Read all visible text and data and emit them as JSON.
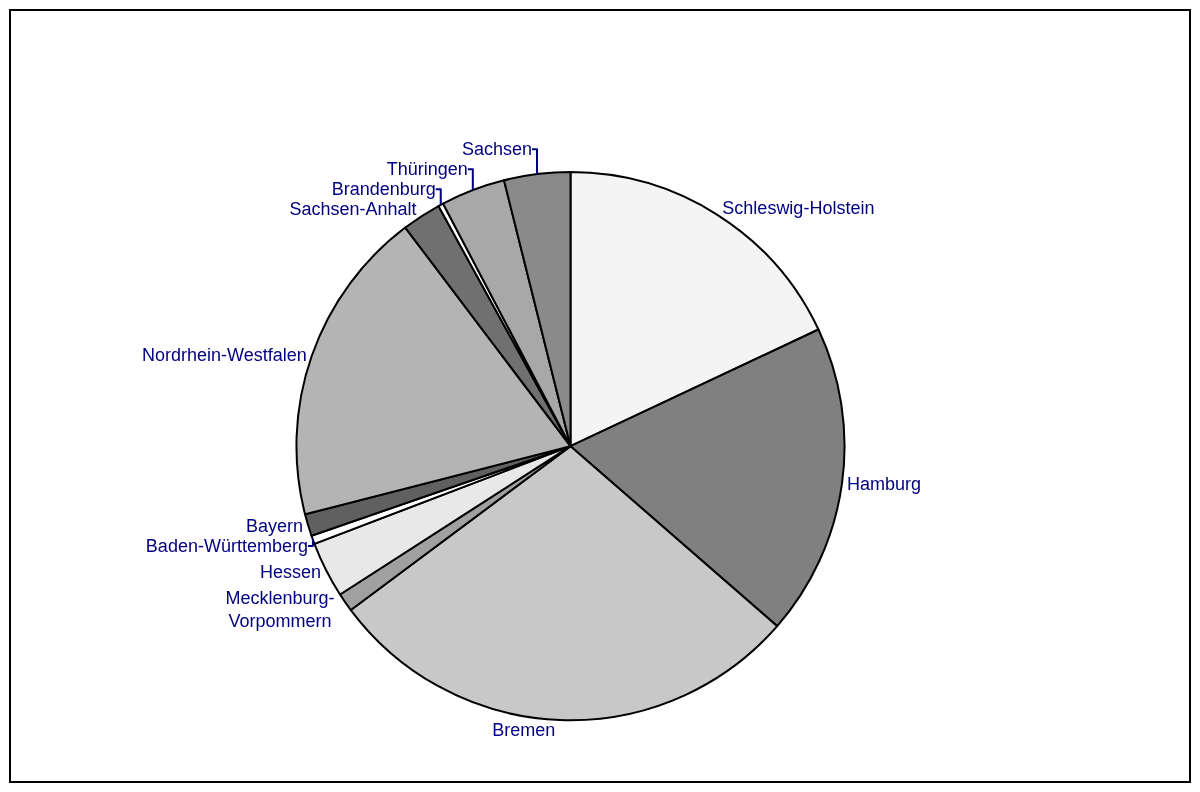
{
  "chart_data": {
    "type": "pie",
    "categories": [
      "Schleswig-Holstein",
      "Hamburg",
      "Bremen",
      "Mecklenburg-\nVorpommern",
      "Hessen",
      "Baden-Württemberg",
      "Bayern",
      "Nordrhein-Westfalen",
      "Sachsen-Anhalt",
      "Brandenburg",
      "Thüringen",
      "Sachsen"
    ],
    "values": [
      18.0,
      18.4,
      28.4,
      1.1,
      3.3,
      0.5,
      1.3,
      18.7,
      2.3,
      0.3,
      3.8,
      3.9
    ],
    "colors": [
      "#f4f4f4",
      "#808080",
      "#c8c8c8",
      "#a0a0a0",
      "#e8e8e8",
      "#ffffff",
      "#606060",
      "#b4b4b4",
      "#707070",
      "#ffffff",
      "#a8a8a8",
      "#8a8a8a"
    ],
    "legend": false
  }
}
